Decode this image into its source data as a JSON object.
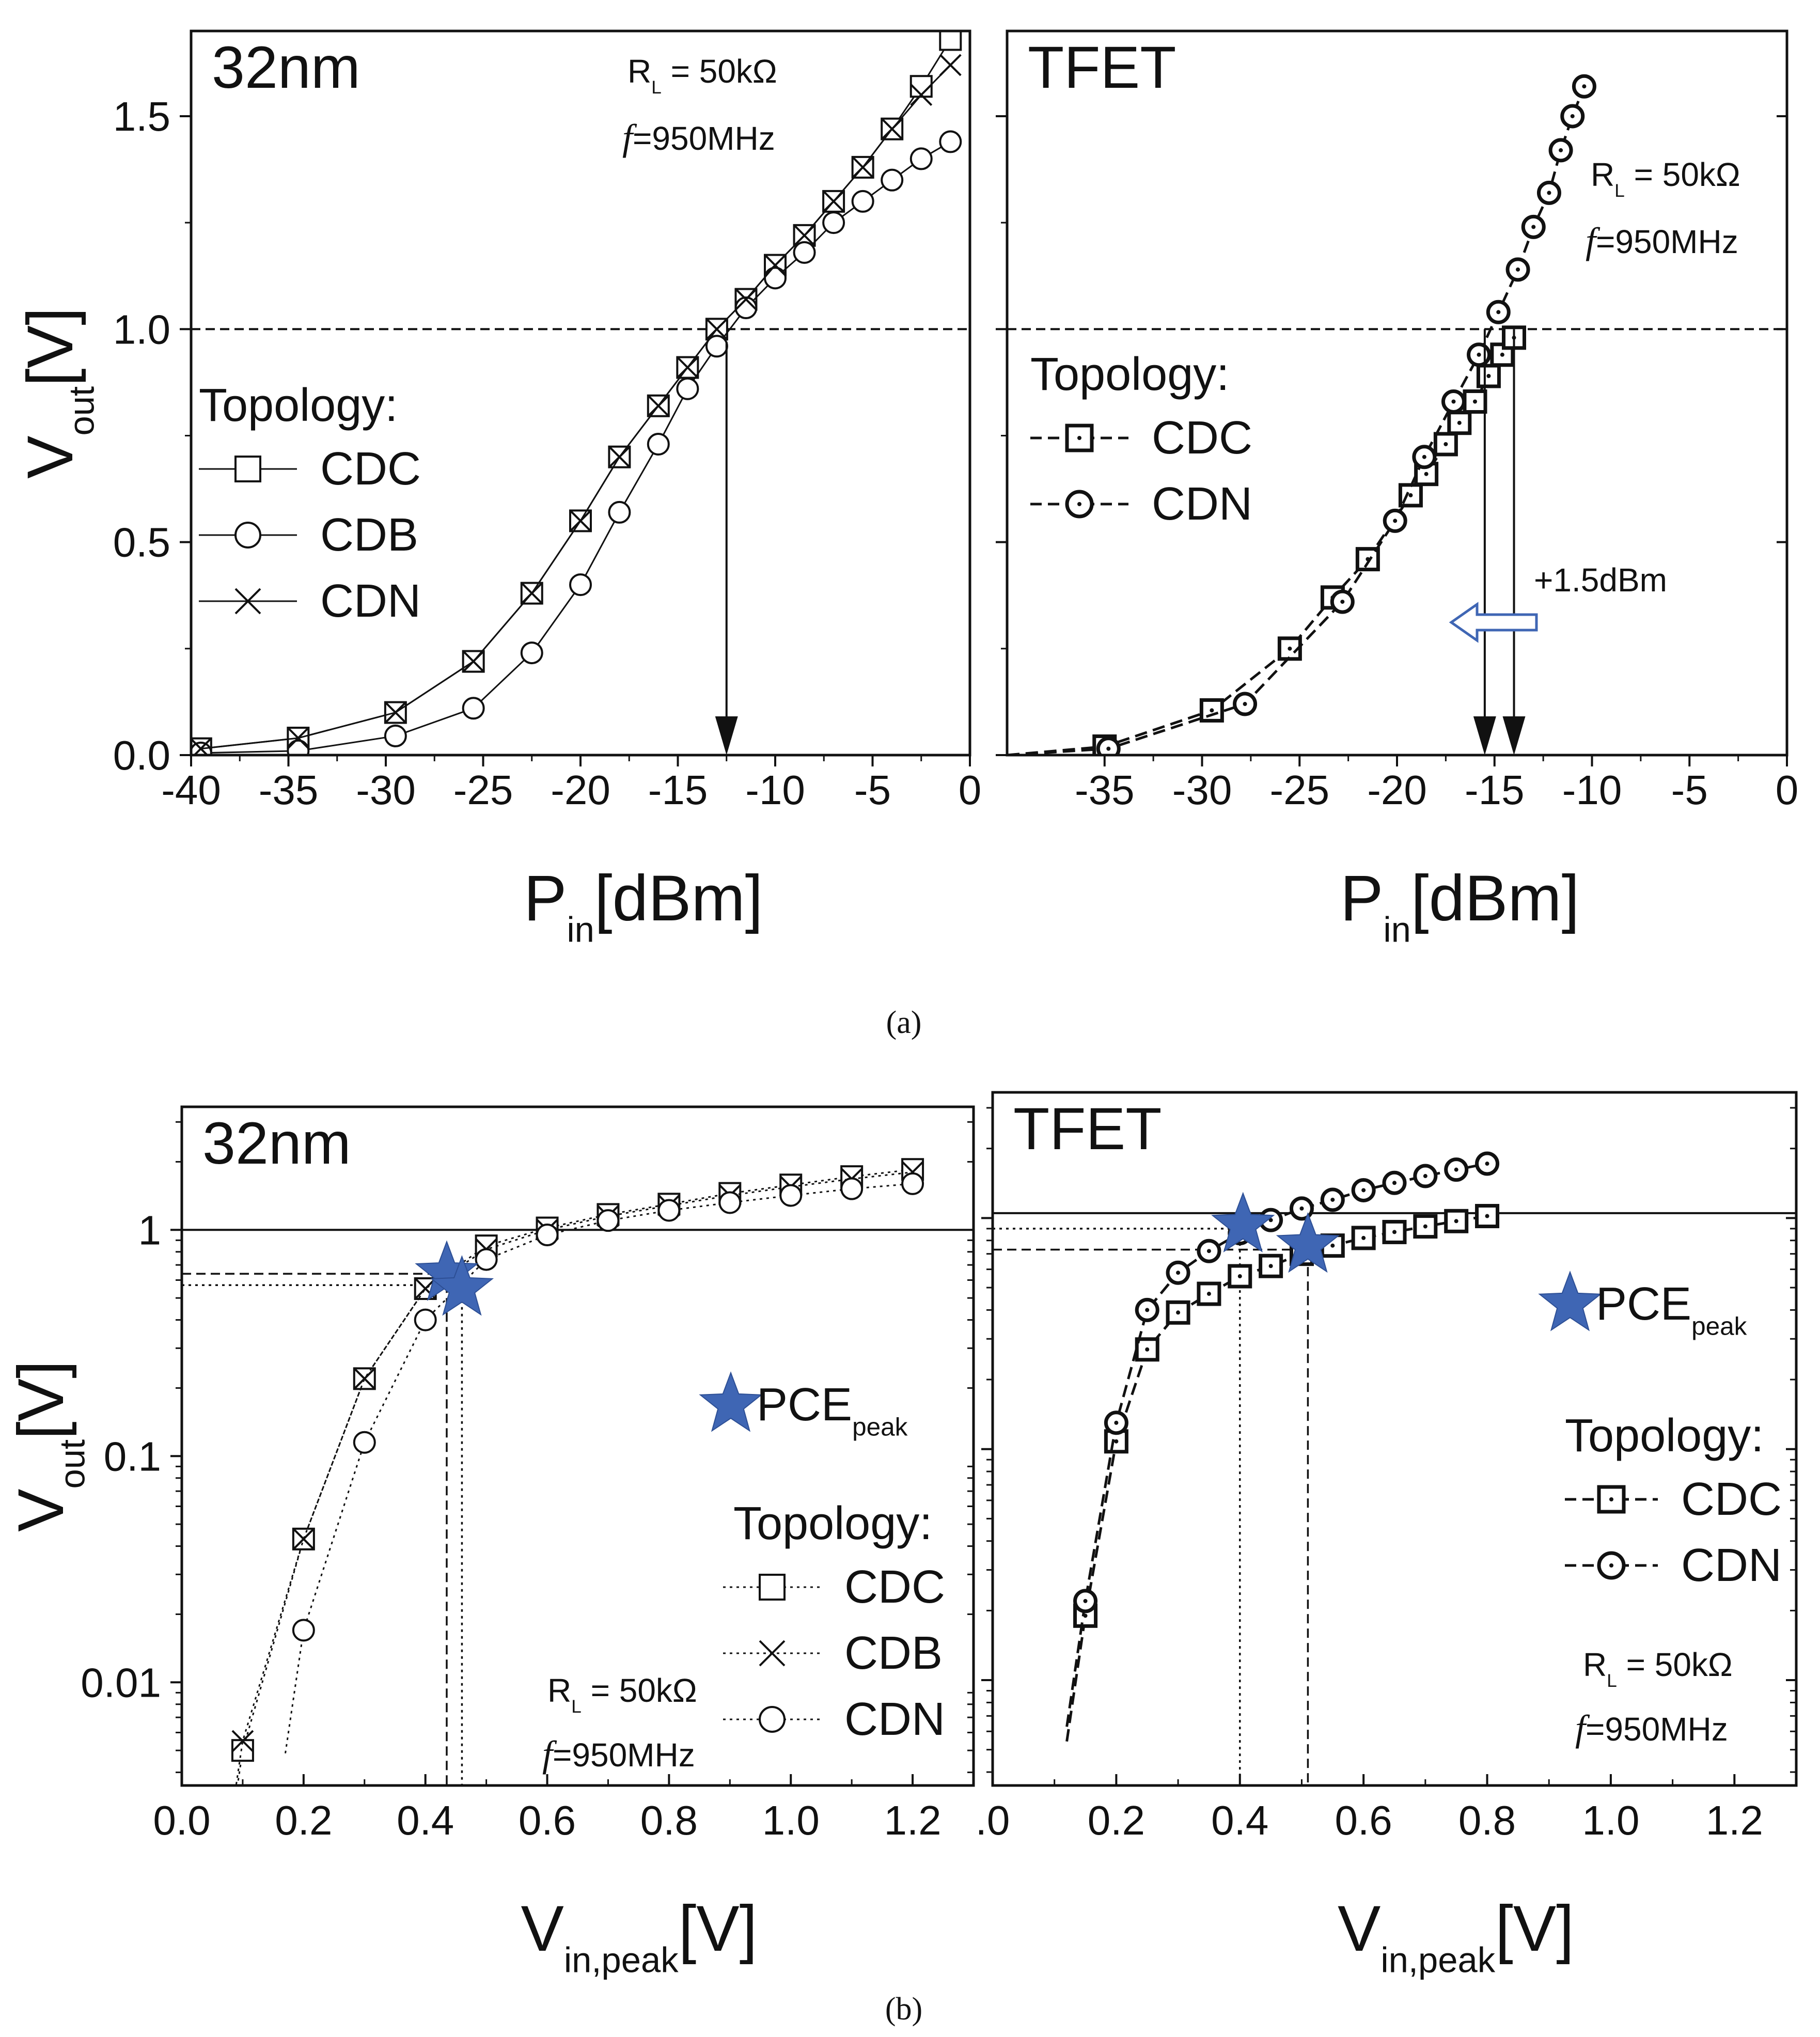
{
  "captions": {
    "a": "(a)",
    "b": "(b)"
  },
  "chart_data": [
    {
      "id": "a_left",
      "type": "line",
      "title": "32nm",
      "xlabel": "P",
      "xlabel_sub": "in",
      "xlabel_rest": "[dBm]",
      "ylabel": "V",
      "ylabel_sub": "out",
      "ylabel_rest": "[V]",
      "xlim": [
        -40,
        0
      ],
      "ylim": [
        0,
        1.7
      ],
      "yscale": "linear",
      "xticks": [
        -40,
        -35,
        -30,
        -25,
        -20,
        -15,
        -10,
        -5,
        0
      ],
      "xtick_labels": [
        "-40",
        "-35",
        "-30",
        "-25",
        "-20",
        "-15",
        "-10",
        "-5",
        "0"
      ],
      "yticks": [
        0,
        0.5,
        1.0,
        1.5
      ],
      "ytick_labels": [
        "0.0",
        "0.5",
        "1.0",
        "1.5"
      ],
      "annotations": {
        "rl_main": "R",
        "rl_sub": "L",
        "rl_rest": " = 50kΩ",
        "f_symbol": "f",
        "f_rest": "=950MHz"
      },
      "reference_line": {
        "y": 1.0,
        "style": "dashed"
      },
      "arrows": [
        {
          "x": -12.5,
          "from_y": 0.97,
          "to_y": 0
        }
      ],
      "legend": {
        "title": "Topology:",
        "position": "left",
        "linestyle": "solid",
        "entries": [
          {
            "label": "CDC",
            "marker": "square"
          },
          {
            "label": "CDB",
            "marker": "circle"
          },
          {
            "label": "CDN",
            "marker": "x"
          }
        ]
      },
      "series": [
        {
          "name": "CDC",
          "marker": "square",
          "x": [
            -39.5,
            -34.5,
            -29.5,
            -25.5,
            -22.5,
            -20,
            -18,
            -16,
            -14.5,
            -13,
            -11.5,
            -10,
            -8.5,
            -7,
            -5.5,
            -4,
            -2.5,
            -1
          ],
          "y": [
            0.015,
            0.04,
            0.1,
            0.22,
            0.38,
            0.55,
            0.7,
            0.82,
            0.91,
            1.0,
            1.07,
            1.15,
            1.22,
            1.3,
            1.38,
            1.47,
            1.57,
            1.68
          ]
        },
        {
          "name": "CDB",
          "marker": "circle",
          "x": [
            -39.5,
            -34.5,
            -29.5,
            -25.5,
            -22.5,
            -20,
            -18,
            -16,
            -14.5,
            -13,
            -11.5,
            -10,
            -8.5,
            -7,
            -5.5,
            -4,
            -2.5,
            -1
          ],
          "y": [
            0.005,
            0.01,
            0.045,
            0.11,
            0.24,
            0.4,
            0.57,
            0.73,
            0.86,
            0.96,
            1.05,
            1.12,
            1.18,
            1.25,
            1.3,
            1.35,
            1.4,
            1.44
          ]
        },
        {
          "name": "CDN",
          "marker": "x",
          "x": [
            -39.5,
            -34.5,
            -29.5,
            -25.5,
            -22.5,
            -20,
            -18,
            -16,
            -14.5,
            -13,
            -11.5,
            -10,
            -8.5,
            -7,
            -5.5,
            -4,
            -2.5,
            -1
          ],
          "y": [
            0.015,
            0.04,
            0.1,
            0.22,
            0.38,
            0.55,
            0.7,
            0.82,
            0.91,
            1.0,
            1.07,
            1.15,
            1.22,
            1.3,
            1.38,
            1.47,
            1.55,
            1.62
          ]
        }
      ]
    },
    {
      "id": "a_right",
      "type": "line",
      "title": "TFET",
      "xlabel": "P",
      "xlabel_sub": "in",
      "xlabel_rest": "[dBm]",
      "xlim": [
        -40,
        0
      ],
      "ylim": [
        0,
        1.7
      ],
      "yscale": "linear",
      "xticks": [
        -35,
        -30,
        -25,
        -20,
        -15,
        -10,
        -5,
        0
      ],
      "xtick_labels": [
        "-35",
        "-30",
        "-25",
        "-20",
        "-15",
        "-10",
        "-5",
        "0"
      ],
      "yticks": [
        0,
        0.5,
        1.0,
        1.5
      ],
      "ytick_labels": [
        "",
        "",
        "",
        ""
      ],
      "annotations": {
        "rl_main": "R",
        "rl_sub": "L",
        "rl_rest": " = 50kΩ",
        "f_symbol": "f",
        "f_rest": "=950MHz",
        "shift": "+1.5dBm"
      },
      "reference_line": {
        "y": 1.0,
        "style": "dashed"
      },
      "arrows": [
        {
          "x": -15.5,
          "from_y": 1.0,
          "to_y": 0
        },
        {
          "x": -14,
          "from_y": 1.0,
          "to_y": 0
        }
      ],
      "legend": {
        "title": "Topology:",
        "position": "upper-left",
        "linestyle": "dashed",
        "entries": [
          {
            "label": "CDC",
            "marker": "dot-square"
          },
          {
            "label": "CDN",
            "marker": "dot-circle"
          }
        ]
      },
      "series": [
        {
          "name": "CDC",
          "marker": "dot-square",
          "x": [
            -35,
            -29.5,
            -25.5,
            -23.3,
            -21.5,
            -19.3,
            -18.5,
            -17.5,
            -16.8,
            -16,
            -15.3,
            -14.6,
            -14
          ],
          "y": [
            0.02,
            0.105,
            0.25,
            0.37,
            0.46,
            0.61,
            0.66,
            0.73,
            0.78,
            0.83,
            0.89,
            0.94,
            0.98
          ]
        },
        {
          "name": "CDN",
          "marker": "dot-circle",
          "x": [
            -34.8,
            -27.8,
            -22.8,
            -20.1,
            -18.6,
            -17.1,
            -15.8,
            -14.8,
            -13.8,
            -13.0,
            -12.2,
            -11.6,
            -11.0,
            -10.4
          ],
          "y": [
            0.015,
            0.12,
            0.36,
            0.55,
            0.7,
            0.83,
            0.94,
            1.04,
            1.14,
            1.24,
            1.32,
            1.42,
            1.5,
            1.57
          ]
        }
      ]
    },
    {
      "id": "b_left",
      "type": "line",
      "title": "32nm",
      "xlabel": "V",
      "xlabel_sub": "in,peak",
      "xlabel_rest": "[V]",
      "ylabel": "V",
      "ylabel_sub": "out",
      "ylabel_rest": "[V]",
      "xlim": [
        0,
        1.3
      ],
      "ylim": [
        0.0035,
        3.5
      ],
      "yscale": "log",
      "xticks": [
        0,
        0.2,
        0.4,
        0.6,
        0.8,
        1.0,
        1.2
      ],
      "xtick_labels": [
        "0.0",
        "0.2",
        "0.4",
        "0.6",
        "0.8",
        "1.0",
        "1.2"
      ],
      "yticks": [
        0.01,
        0.1,
        1
      ],
      "ytick_labels": [
        "0.01",
        "0.1",
        "1"
      ],
      "annotations": {
        "rl_main": "R",
        "rl_sub": "L",
        "rl_rest": " = 50kΩ",
        "f_symbol": "f",
        "f_rest": "=950MHz",
        "pce_main": "PCE",
        "pce_sub": "peak"
      },
      "reference_line": {
        "y": 1.0,
        "style": "solid"
      },
      "guides": [
        {
          "x": 0.435,
          "y": 0.64,
          "style": "dashed"
        },
        {
          "x": 0.46,
          "y": 0.57,
          "style": "dotted"
        }
      ],
      "peak_markers": [
        {
          "x": 0.435,
          "y": 0.64
        },
        {
          "x": 0.46,
          "y": 0.55
        }
      ],
      "legend": {
        "title": "Topology:",
        "position": "lower-right",
        "linestyle": "dotted",
        "entries": [
          {
            "label": "CDC",
            "marker": "square"
          },
          {
            "label": "CDB",
            "marker": "x"
          },
          {
            "label": "CDN",
            "marker": "circle"
          }
        ]
      },
      "series": [
        {
          "name": "CDC",
          "marker": "square",
          "x": [
            0.1,
            0.2,
            0.3,
            0.4,
            0.5,
            0.6,
            0.7,
            0.8,
            0.9,
            1.0,
            1.1,
            1.2
          ],
          "y": [
            0.005,
            0.043,
            0.22,
            0.55,
            0.85,
            1.02,
            1.17,
            1.3,
            1.45,
            1.58,
            1.72,
            1.85
          ]
        },
        {
          "name": "CDB",
          "marker": "x",
          "x": [
            0.1,
            0.2,
            0.3,
            0.4,
            0.5,
            0.6,
            0.7,
            0.8,
            0.9,
            1.0,
            1.1,
            1.2
          ],
          "y": [
            0.0055,
            0.043,
            0.22,
            0.55,
            0.82,
            1.0,
            1.15,
            1.28,
            1.42,
            1.55,
            1.68,
            1.8
          ]
        },
        {
          "name": "CDN",
          "marker": "circle",
          "x": [
            0.2,
            0.3,
            0.4,
            0.5,
            0.6,
            0.7,
            0.8,
            0.9,
            1.0,
            1.1,
            1.2
          ],
          "y": [
            0.017,
            0.115,
            0.4,
            0.74,
            0.95,
            1.1,
            1.22,
            1.32,
            1.42,
            1.52,
            1.6
          ]
        }
      ]
    },
    {
      "id": "b_right",
      "type": "line",
      "title": "TFET",
      "xlabel": "V",
      "xlabel_sub": "in,peak",
      "xlabel_rest": "[V]",
      "xlim": [
        0,
        1.3
      ],
      "ylim": [
        0.0035,
        3.5
      ],
      "yscale": "log",
      "xticks": [
        0,
        0.2,
        0.4,
        0.6,
        0.8,
        1.0,
        1.2
      ],
      "xtick_labels": [
        ".0",
        "0.2",
        "0.4",
        "0.6",
        "0.8",
        "1.0",
        "1.2"
      ],
      "yticks": [
        0.01,
        0.1,
        1
      ],
      "ytick_labels": [
        "",
        "",
        ""
      ],
      "annotations": {
        "rl_main": "R",
        "rl_sub": "L",
        "rl_rest": " = 50kΩ",
        "f_symbol": "f",
        "f_rest": "=950MHz",
        "pce_main": "PCE",
        "pce_sub": "peak"
      },
      "reference_line": {
        "y": 1.05,
        "style": "solid"
      },
      "guides": [
        {
          "x": 0.4,
          "y": 0.9,
          "style": "dotted"
        },
        {
          "x": 0.51,
          "y": 0.73,
          "style": "dashed"
        }
      ],
      "peak_markers": [
        {
          "x": 0.405,
          "y": 0.93
        },
        {
          "x": 0.51,
          "y": 0.76
        }
      ],
      "legend": {
        "title": "Topology:",
        "position": "right",
        "linestyle": "dashed",
        "entries": [
          {
            "label": "CDC",
            "marker": "dot-square"
          },
          {
            "label": "CDN",
            "marker": "dot-circle"
          }
        ]
      },
      "series": [
        {
          "name": "CDC",
          "marker": "dot-square",
          "x": [
            0.15,
            0.2,
            0.25,
            0.3,
            0.35,
            0.4,
            0.45,
            0.5,
            0.55,
            0.6,
            0.65,
            0.7,
            0.75,
            0.8
          ],
          "y": [
            0.019,
            0.108,
            0.27,
            0.39,
            0.47,
            0.56,
            0.62,
            0.7,
            0.76,
            0.82,
            0.87,
            0.92,
            0.97,
            1.02
          ]
        },
        {
          "name": "CDN",
          "marker": "dot-circle",
          "x": [
            0.15,
            0.2,
            0.25,
            0.3,
            0.35,
            0.4,
            0.45,
            0.5,
            0.55,
            0.6,
            0.65,
            0.7,
            0.75,
            0.8
          ],
          "y": [
            0.022,
            0.13,
            0.4,
            0.58,
            0.72,
            0.86,
            0.98,
            1.1,
            1.2,
            1.32,
            1.42,
            1.52,
            1.62,
            1.72
          ]
        }
      ]
    }
  ]
}
